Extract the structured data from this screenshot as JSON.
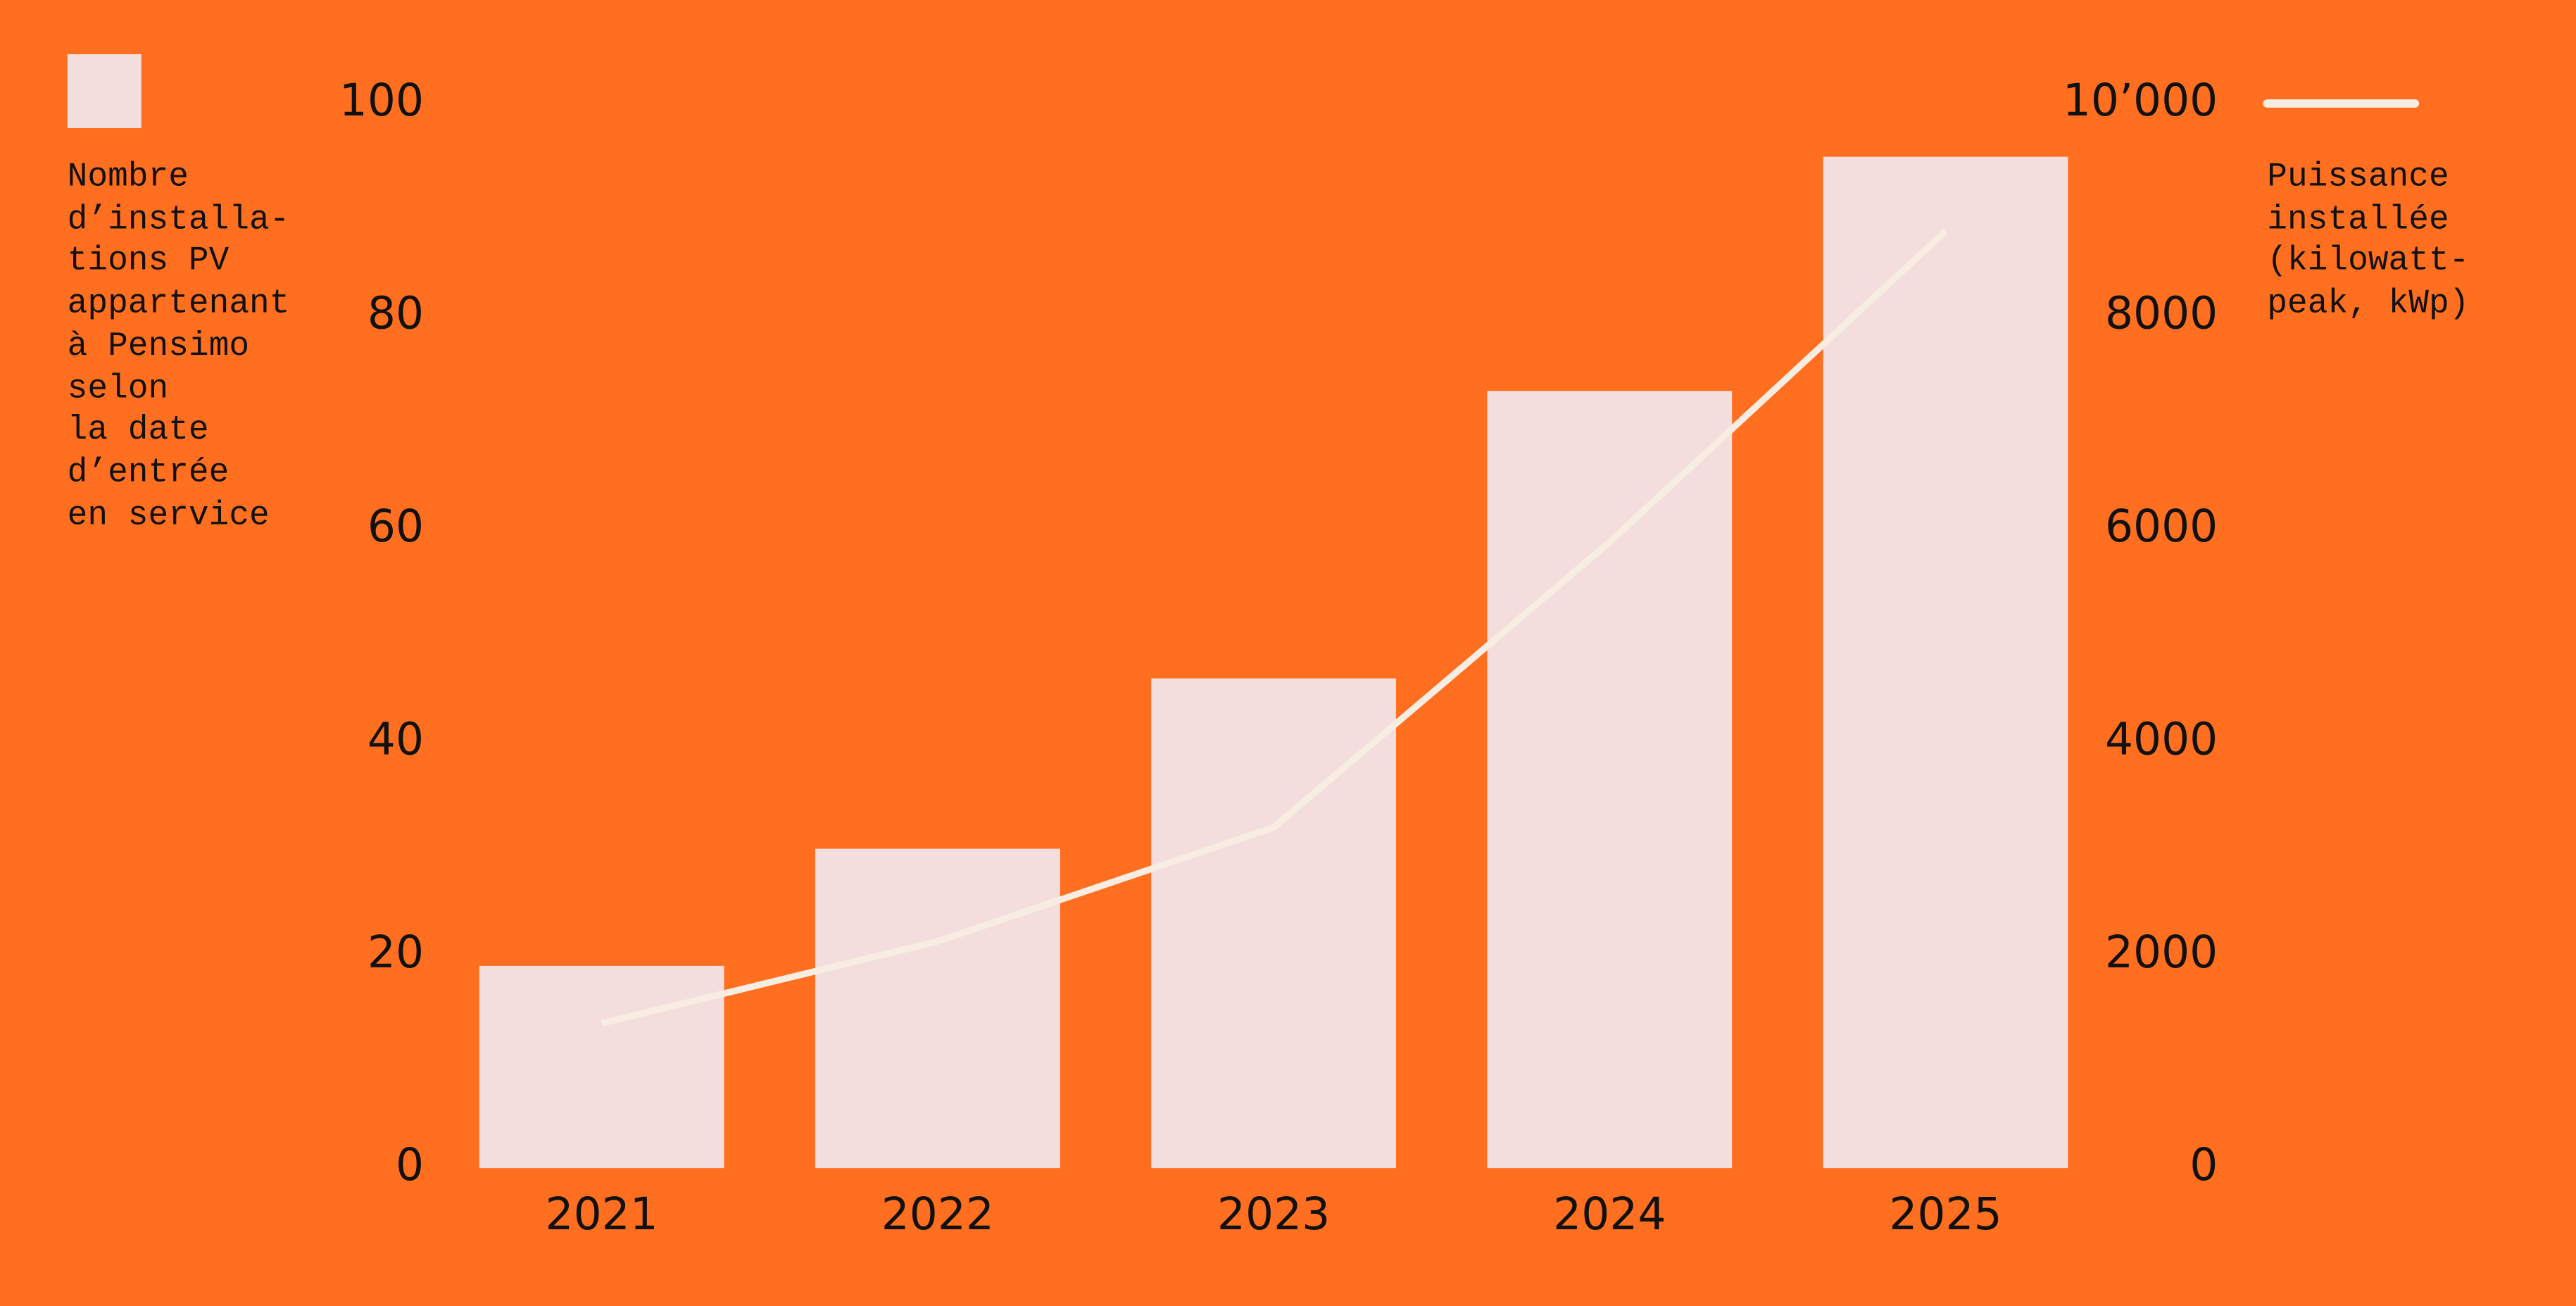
{
  "chart_data": {
    "type": "bar",
    "categories": [
      "2021",
      "2022",
      "2023",
      "2024",
      "2025"
    ],
    "series": [
      {
        "name": "Nombre\nd’installa-\ntions PV\nappartenant\nà Pensimo\nselon\nla date\nd’entrée\nen service",
        "type": "bar",
        "color": "#f4dedd",
        "values": [
          19,
          30,
          46,
          73,
          95
        ]
      },
      {
        "name": "Puissance\ninstallée\n(kilowatt-\npeak, kWp)",
        "type": "line",
        "axis": "y2",
        "color": "#f7ede3",
        "values": [
          1360,
          2130,
          3200,
          5880,
          8800
        ]
      }
    ],
    "ylim": [
      0,
      100
    ],
    "yticks": [
      0,
      20,
      40,
      60,
      80,
      100
    ],
    "y2lim": [
      0,
      10000
    ],
    "y2ticks": [
      0,
      2000,
      4000,
      6000,
      8000,
      {
        "value": 10000,
        "label": "10’000"
      }
    ],
    "background": "#ff6f1f"
  }
}
